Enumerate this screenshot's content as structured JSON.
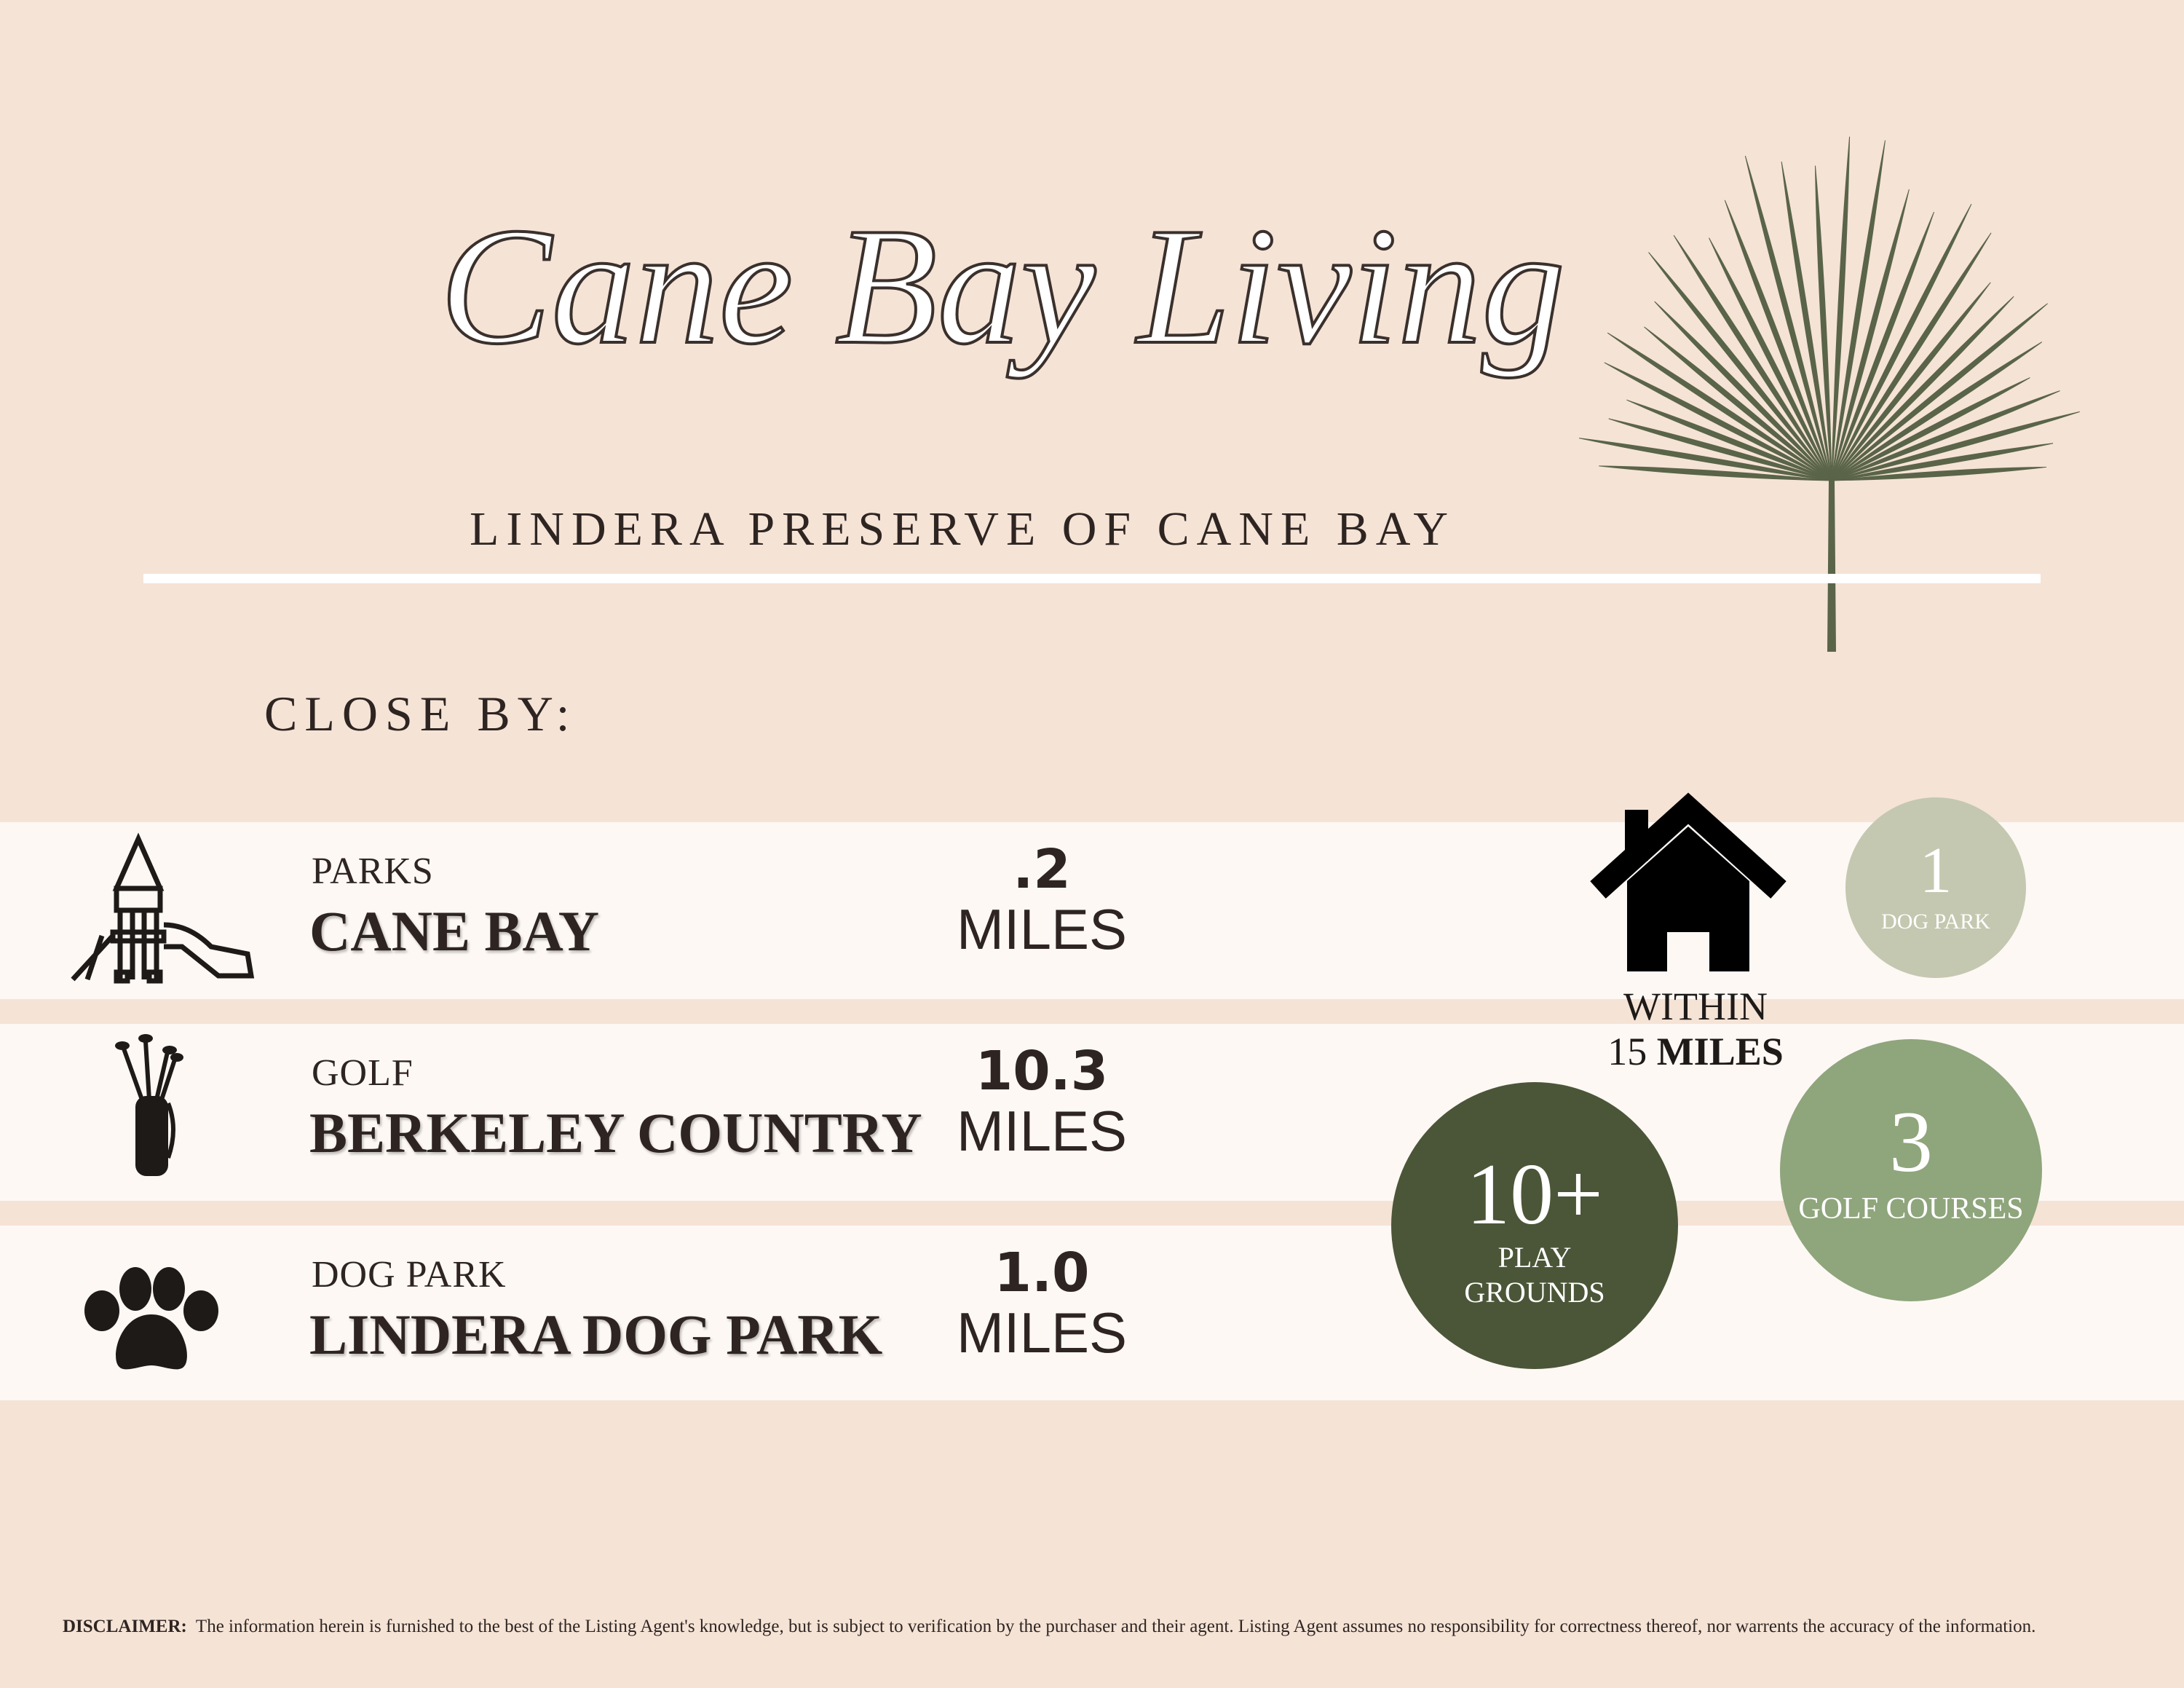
{
  "header": {
    "title": "Cane Bay Living",
    "subtitle": "LINDERA PRESERVE OF CANE BAY"
  },
  "section_heading": "CLOSE BY:",
  "places": [
    {
      "category": "PARKS",
      "name": "CANE BAY",
      "distance": ".2",
      "unit": "MILES"
    },
    {
      "category": "GOLF",
      "name": "BERKELEY COUNTRY",
      "distance": "10.3",
      "unit": "MILES"
    },
    {
      "category": "DOG PARK",
      "name": "LINDERA DOG PARK",
      "distance": "1.0",
      "unit": "MILES"
    }
  ],
  "summary": {
    "caption_line1": "WITHIN",
    "caption_number": "15",
    "caption_unit": "MILES",
    "stats": [
      {
        "value": "1",
        "label_lines": [
          "DOG PARK"
        ]
      },
      {
        "value": "3",
        "label_lines": [
          "GOLF COURSES"
        ]
      },
      {
        "value": "10+",
        "label_lines": [
          "PLAY",
          "GROUNDS"
        ]
      }
    ]
  },
  "disclaimer": {
    "label": "DISCLAIMER:",
    "text": "The information herein is furnished to the best of the Listing Agent's knowledge, but is subject to verification by the purchaser and their agent. Listing Agent assumes no responsibility for correctness thereof, nor warrents the accuracy of the information."
  }
}
